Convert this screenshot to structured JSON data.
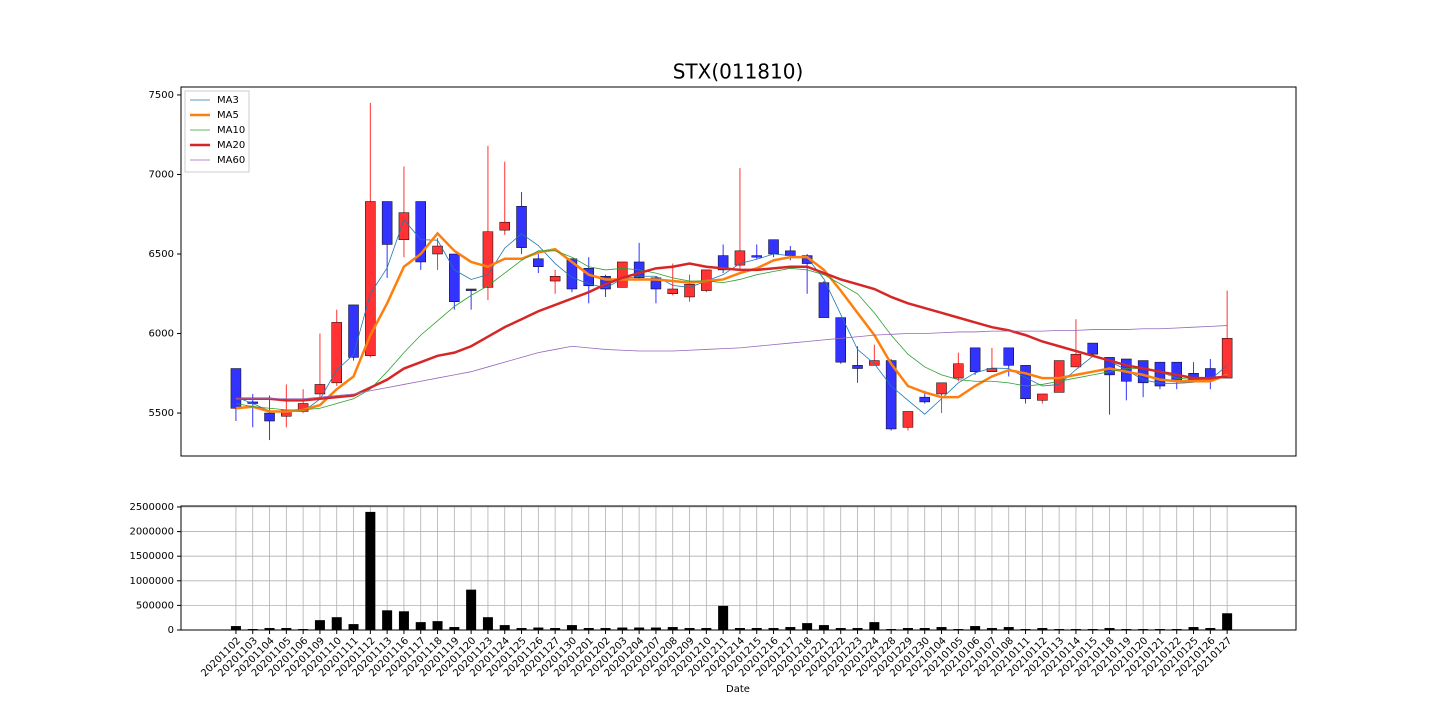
{
  "chart_data": [
    {
      "type": "candlestick",
      "title": "STX(011810)",
      "open": [
        5780,
        5570,
        5500,
        5480,
        5510,
        5620,
        5690,
        6180,
        5860,
        6830,
        6590,
        6830,
        6500,
        6500,
        6280,
        6290,
        6650,
        6800,
        6470,
        6330,
        6470,
        6410,
        6360,
        6290,
        6450,
        6350,
        6250,
        6230,
        6270,
        6490,
        6430,
        6490,
        6590,
        6520,
        6490,
        6320,
        6100,
        5800,
        5800,
        5830,
        5410,
        5600,
        5620,
        5720,
        5910,
        5760,
        5910,
        5800,
        5580,
        5630,
        5790,
        5940,
        5850,
        5840,
        5830,
        5820,
        5820,
        5750,
        5780,
        5720
      ],
      "high": [
        5780,
        5620,
        5610,
        5680,
        5650,
        6000,
        6150,
        6180,
        7450,
        6830,
        7050,
        6830,
        6600,
        6500,
        6280,
        7180,
        7080,
        6890,
        6500,
        6400,
        6470,
        6480,
        6370,
        6450,
        6570,
        6360,
        6440,
        6370,
        6400,
        6560,
        7040,
        6560,
        6590,
        6550,
        6500,
        6330,
        6100,
        5920,
        5930,
        5840,
        5510,
        5640,
        5690,
        5880,
        5910,
        5910,
        5910,
        5800,
        5620,
        5830,
        6090,
        5940,
        5850,
        5840,
        5830,
        5820,
        5820,
        5820,
        5840,
        6270
      ],
      "low": [
        5450,
        5410,
        5330,
        5410,
        5500,
        5600,
        5670,
        5830,
        5850,
        6350,
        6480,
        6400,
        6400,
        6150,
        6150,
        6210,
        6620,
        6500,
        6380,
        6250,
        6260,
        6190,
        6230,
        6290,
        6340,
        6190,
        6240,
        6200,
        6260,
        6380,
        6400,
        6470,
        6480,
        6460,
        6250,
        6100,
        5810,
        5690,
        5800,
        5390,
        5390,
        5560,
        5500,
        5700,
        5740,
        5760,
        5730,
        5560,
        5560,
        5630,
        5790,
        5870,
        5490,
        5580,
        5600,
        5650,
        5650,
        5700,
        5650,
        5720
      ],
      "close": [
        5530,
        5560,
        5450,
        5520,
        5560,
        5680,
        6070,
        5850,
        6830,
        6560,
        6760,
        6450,
        6550,
        6200,
        6270,
        6640,
        6700,
        6540,
        6420,
        6360,
        6280,
        6300,
        6280,
        6450,
        6350,
        6280,
        6280,
        6310,
        6400,
        6400,
        6520,
        6480,
        6500,
        6490,
        6440,
        6100,
        5820,
        5780,
        5830,
        5400,
        5510,
        5570,
        5690,
        5810,
        5760,
        5780,
        5800,
        5590,
        5620,
        5830,
        5870,
        5870,
        5740,
        5700,
        5690,
        5670,
        5700,
        5710,
        5720,
        5970
      ],
      "up_color": "#ff3333",
      "down_color": "#3333ff",
      "series": [
        {
          "name": "MA3",
          "color": "#1f77b4",
          "width": 0.8,
          "values": [
            5600,
            5560,
            5513,
            5510,
            5510,
            5587,
            5770,
            5867,
            6250,
            6413,
            6717,
            6590,
            6587,
            6400,
            6340,
            6370,
            6537,
            6627,
            6553,
            6440,
            6353,
            6313,
            6287,
            6343,
            6360,
            6360,
            6303,
            6290,
            6330,
            6370,
            6440,
            6467,
            6500,
            6490,
            6477,
            6343,
            6120,
            5900,
            5810,
            5670,
            5580,
            5493,
            5590,
            5690,
            5753,
            5783,
            5780,
            5723,
            5670,
            5680,
            5773,
            5857,
            5827,
            5770,
            5710,
            5687,
            5687,
            5693,
            5710,
            5800
          ]
        },
        {
          "name": "MA5",
          "color": "#ff7f0e",
          "width": 2.5,
          "values": [
            5530,
            5540,
            5510,
            5510,
            5520,
            5550,
            5650,
            5730,
            5990,
            6190,
            6420,
            6500,
            6630,
            6520,
            6450,
            6420,
            6470,
            6470,
            6510,
            6530,
            6450,
            6370,
            6340,
            6340,
            6340,
            6340,
            6330,
            6320,
            6330,
            6340,
            6380,
            6410,
            6460,
            6480,
            6480,
            6400,
            6270,
            6130,
            5990,
            5810,
            5670,
            5630,
            5600,
            5600,
            5670,
            5730,
            5770,
            5750,
            5720,
            5720,
            5740,
            5760,
            5780,
            5760,
            5740,
            5710,
            5700,
            5700,
            5700,
            5740
          ]
        },
        {
          "name": "MA10",
          "color": "#2ca02c",
          "width": 0.8,
          "values": [
            5560,
            5540,
            5530,
            5520,
            5520,
            5530,
            5560,
            5590,
            5650,
            5760,
            5880,
            5990,
            6080,
            6170,
            6240,
            6300,
            6380,
            6460,
            6520,
            6520,
            6480,
            6420,
            6400,
            6410,
            6400,
            6380,
            6350,
            6330,
            6330,
            6320,
            6340,
            6370,
            6390,
            6410,
            6400,
            6370,
            6310,
            6250,
            6130,
            5990,
            5870,
            5790,
            5740,
            5710,
            5700,
            5700,
            5690,
            5670,
            5680,
            5700,
            5720,
            5740,
            5760,
            5780,
            5780,
            5760,
            5720,
            5710,
            5710,
            5730
          ]
        },
        {
          "name": "MA20",
          "color": "#d62728",
          "width": 2.5,
          "values": [
            5590,
            5590,
            5590,
            5580,
            5580,
            5590,
            5600,
            5610,
            5660,
            5710,
            5780,
            5820,
            5860,
            5880,
            5920,
            5980,
            6040,
            6090,
            6140,
            6180,
            6220,
            6260,
            6310,
            6350,
            6380,
            6410,
            6420,
            6440,
            6420,
            6410,
            6400,
            6400,
            6410,
            6420,
            6420,
            6380,
            6340,
            6310,
            6280,
            6230,
            6190,
            6160,
            6130,
            6100,
            6070,
            6040,
            6020,
            5990,
            5950,
            5920,
            5890,
            5860,
            5830,
            5800,
            5780,
            5760,
            5740,
            5720,
            5720,
            5730
          ]
        },
        {
          "name": "MA60",
          "color": "#9467bd",
          "width": 0.8,
          "values": [
            5590,
            5590,
            5590,
            5590,
            5590,
            5600,
            5610,
            5620,
            5640,
            5660,
            5680,
            5700,
            5720,
            5740,
            5760,
            5790,
            5820,
            5850,
            5880,
            5900,
            5920,
            5910,
            5900,
            5895,
            5890,
            5890,
            5890,
            5895,
            5900,
            5905,
            5910,
            5920,
            5930,
            5940,
            5950,
            5960,
            5970,
            5980,
            5990,
            5995,
            6000,
            6000,
            6005,
            6010,
            6010,
            6015,
            6015,
            6015,
            6015,
            6020,
            6020,
            6025,
            6025,
            6025,
            6030,
            6030,
            6035,
            6040,
            6045,
            6050
          ]
        }
      ],
      "legend": "upper left",
      "ylim": [
        5230,
        7550
      ],
      "yticks": [
        5500,
        6000,
        6500,
        7000,
        7500
      ]
    },
    {
      "type": "bar",
      "xlabel": "Date",
      "color": "#000000",
      "grid": true,
      "categories": [
        "20201102",
        "20201103",
        "20201104",
        "20201105",
        "20201106",
        "20201109",
        "20201110",
        "20201111",
        "20201112",
        "20201113",
        "20201116",
        "20201117",
        "20201118",
        "20201119",
        "20201120",
        "20201123",
        "20201124",
        "20201125",
        "20201126",
        "20201127",
        "20201130",
        "20201201",
        "20201202",
        "20201203",
        "20201204",
        "20201207",
        "20201208",
        "20201209",
        "20201210",
        "20201211",
        "20201214",
        "20201215",
        "20201216",
        "20201217",
        "20201218",
        "20201221",
        "20201222",
        "20201223",
        "20201224",
        "20201228",
        "20201229",
        "20201230",
        "20210104",
        "20210105",
        "20210106",
        "20210107",
        "20210108",
        "20210111",
        "20210112",
        "20210113",
        "20210114",
        "20210115",
        "20210118",
        "20210119",
        "20210120",
        "20210121",
        "20210122",
        "20210125",
        "20210126",
        "20210127"
      ],
      "values": [
        80000,
        20000,
        40000,
        40000,
        20000,
        200000,
        260000,
        120000,
        2400000,
        400000,
        380000,
        160000,
        180000,
        60000,
        820000,
        260000,
        100000,
        40000,
        50000,
        40000,
        100000,
        40000,
        40000,
        50000,
        50000,
        50000,
        60000,
        40000,
        40000,
        490000,
        40000,
        40000,
        40000,
        60000,
        140000,
        100000,
        40000,
        40000,
        160000,
        20000,
        40000,
        40000,
        60000,
        20000,
        80000,
        40000,
        60000,
        20000,
        40000,
        20000,
        20000,
        20000,
        40000,
        20000,
        20000,
        20000,
        20000,
        60000,
        40000,
        340000
      ],
      "ylim": [
        0,
        2520000
      ],
      "yticks": [
        0,
        500000,
        1000000,
        1500000,
        2000000,
        2500000
      ]
    }
  ]
}
